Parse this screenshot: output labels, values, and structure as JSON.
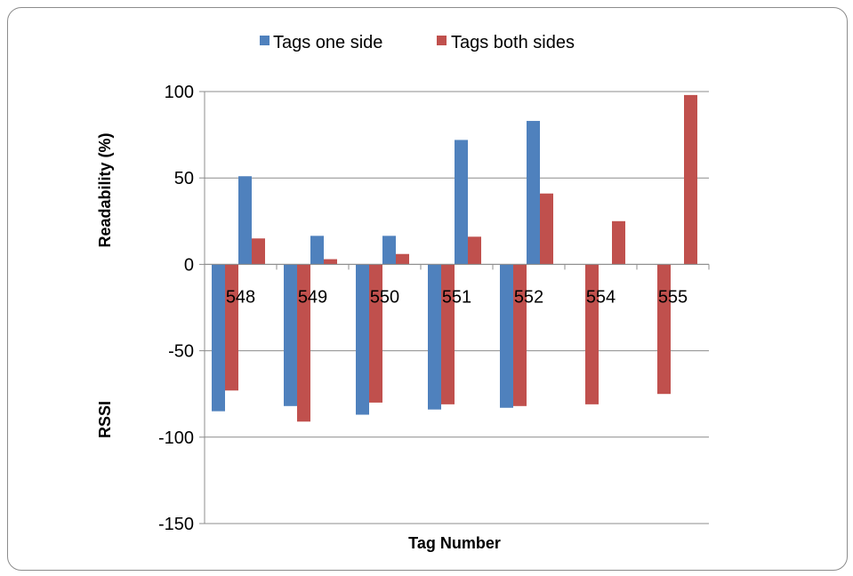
{
  "chart_data": {
    "type": "bar",
    "categories": [
      "548",
      "549",
      "550",
      "551",
      "552",
      "554",
      "555"
    ],
    "y_ticks": [
      "100",
      "50",
      "0",
      "-50",
      "-100",
      "-150"
    ],
    "ylim": [
      -150,
      100
    ],
    "xlabel": "Tag Number",
    "ylabel_upper": "Readability (%)",
    "ylabel_lower": "RSSI",
    "legend_position": "top",
    "grid": true,
    "series": [
      {
        "name": "Tags one side",
        "color": "#4f81bd",
        "readability": [
          51,
          16.5,
          16.5,
          72,
          83,
          null,
          null
        ],
        "rssi": [
          -85,
          -82,
          -87,
          -84,
          -83,
          null,
          null
        ]
      },
      {
        "name": "Tags both sides",
        "color": "#c0504d",
        "readability": [
          15,
          3,
          6,
          16,
          41,
          25,
          98
        ],
        "rssi": [
          -73,
          -91,
          -80,
          -81,
          -82,
          -81,
          -75
        ]
      }
    ]
  }
}
